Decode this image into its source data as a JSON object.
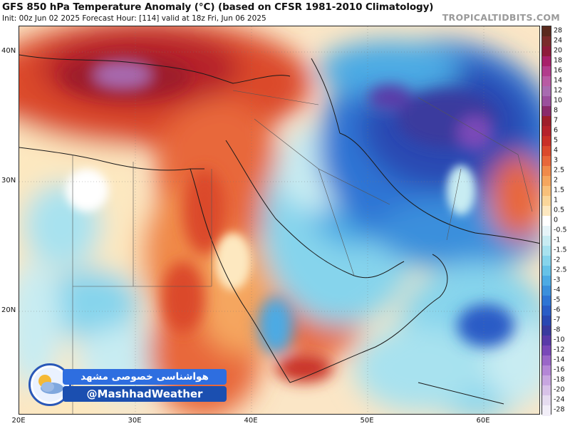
{
  "header": {
    "title": "GFS 850 hPa Temperature Anomaly (°C) (based on CFSR 1981-2010 Climatology)",
    "subtitle": "Init: 00z Jun 02 2025   Forecast Hour: [114]   valid at 18z Fri, Jun 06 2025",
    "brand": "TROPICALTIDBITS.COM"
  },
  "axes": {
    "lat_labels": [
      "40N",
      "30N",
      "20N"
    ],
    "lon_labels": [
      "20E",
      "30E",
      "40E",
      "50E",
      "60E"
    ]
  },
  "colorbar": {
    "ticks": [
      "28",
      "24",
      "20",
      "18",
      "16",
      "14",
      "12",
      "10",
      "8",
      "7",
      "6",
      "5",
      "4",
      "3",
      "2.5",
      "2",
      "1.5",
      "1",
      "0.5",
      "0",
      "-0.5",
      "-1",
      "-1.5",
      "-2",
      "-2.5",
      "-3",
      "-4",
      "-5",
      "-6",
      "-7",
      "-8",
      "-10",
      "-12",
      "-14",
      "-16",
      "-18",
      "-20",
      "-24",
      "-28"
    ],
    "colors": [
      "#5a2a1e",
      "#7a2b2b",
      "#8e1b3a",
      "#a8206a",
      "#b23c8c",
      "#b85aa3",
      "#a86bb0",
      "#9b4f9c",
      "#8a2a6a",
      "#9e1e2a",
      "#b5222a",
      "#c93026",
      "#db4a2c",
      "#e8673a",
      "#f08a4a",
      "#f5a65e",
      "#f8c07a",
      "#fad69a",
      "#fde8c0",
      "#ffffff",
      "#e6f4f8",
      "#c8ecf2",
      "#a8e2ef",
      "#86d4ec",
      "#66c2e8",
      "#4caae4",
      "#3a8fdc",
      "#2e74d4",
      "#2a5cc6",
      "#2a48b2",
      "#3a3a9e",
      "#5a3aa8",
      "#7a48b8",
      "#9a66c8",
      "#b486d6",
      "#c8a6e0",
      "#d8c2e8",
      "#e6dcf0",
      "#f2eef8"
    ]
  },
  "watermark": {
    "persian_line": "هواشناسی خصوصی مشهد",
    "handle": "@MashhadWeather"
  }
}
